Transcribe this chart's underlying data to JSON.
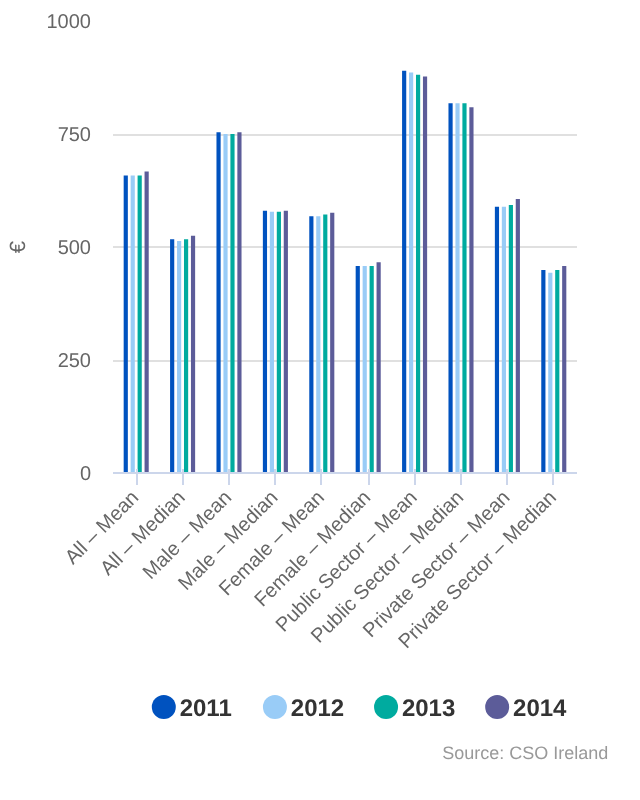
{
  "chart_data": {
    "type": "bar",
    "ylabel": "€",
    "categories": [
      "All – Mean",
      "All – Median",
      "Male – Mean",
      "Male – Median",
      "Female – Mean",
      "Female – Median",
      "Public Sector – Mean",
      "Public Sector – Median",
      "Private Sector – Mean",
      "Private Sector – Median"
    ],
    "series": [
      {
        "name": "2011",
        "color": "#0052bf",
        "values": [
          658,
          517,
          754,
          580,
          568,
          458,
          890,
          818,
          589,
          449
        ]
      },
      {
        "name": "2012",
        "color": "#99ccf7",
        "values": [
          658,
          513,
          750,
          578,
          568,
          458,
          886,
          818,
          589,
          443
        ]
      },
      {
        "name": "2013",
        "color": "#00ab9f",
        "values": [
          658,
          517,
          750,
          578,
          572,
          458,
          881,
          818,
          593,
          449
        ]
      },
      {
        "name": "2014",
        "color": "#5c5c99",
        "values": [
          667,
          525,
          754,
          580,
          576,
          466,
          877,
          809,
          606,
          458
        ]
      }
    ],
    "ylim": [
      0,
      1000
    ],
    "yticks": [
      0,
      250,
      500,
      750,
      1000
    ],
    "grid": "y",
    "legend": "bottom",
    "annotations": [
      "Source: CSO Ireland"
    ]
  }
}
